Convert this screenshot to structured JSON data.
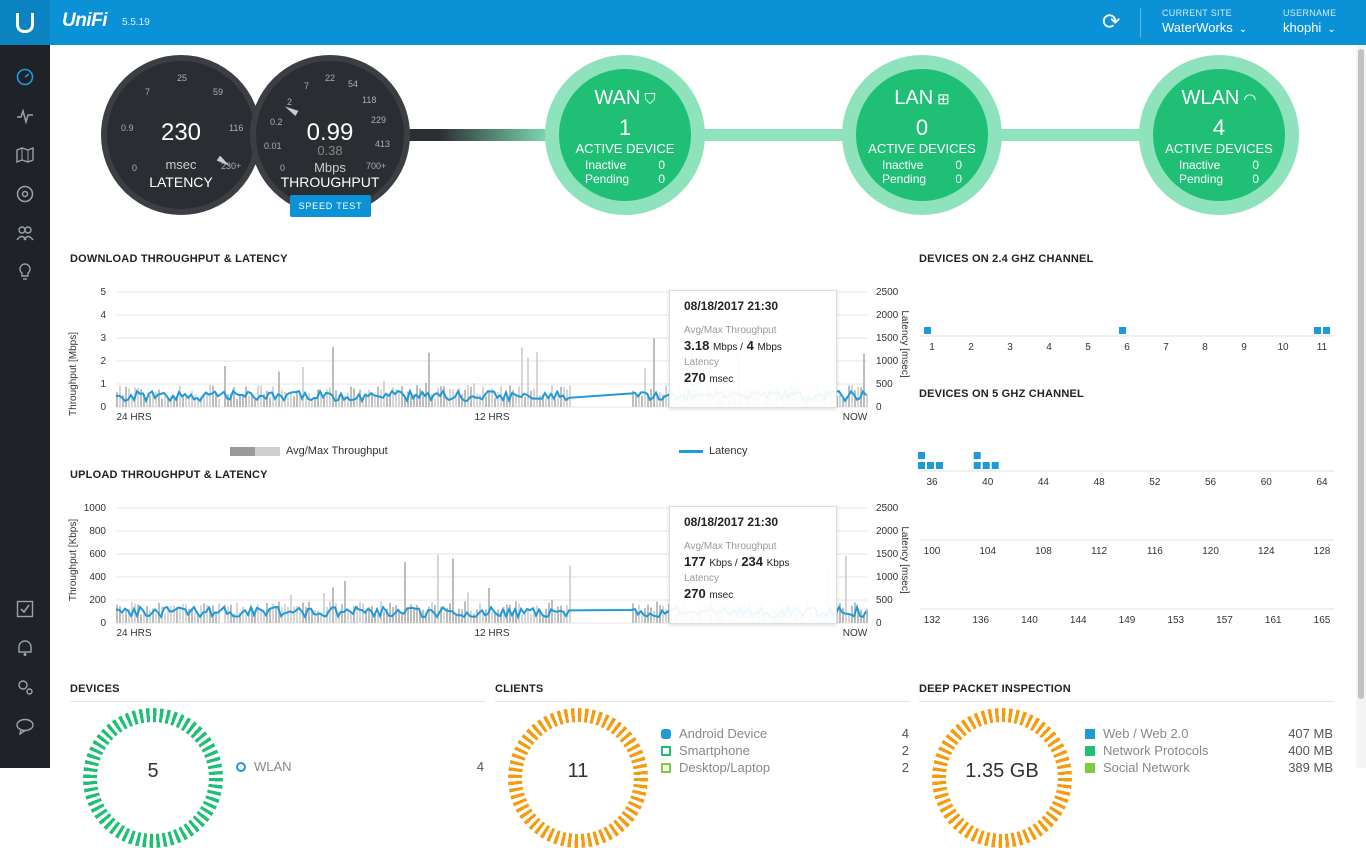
{
  "app": {
    "brand": "UniFi",
    "version": "5.5.19"
  },
  "header": {
    "site_label": "CURRENT SITE",
    "site_value": "WaterWorks",
    "user_label": "USERNAME",
    "user_value": "khophi"
  },
  "sidebar": {
    "top_items": [
      "dashboard-icon",
      "statistics-icon",
      "map-icon",
      "devices-icon",
      "clients-icon",
      "insights-icon"
    ],
    "bottom_items": [
      "tasks-icon",
      "alerts-icon",
      "settings-icon",
      "chat-icon"
    ]
  },
  "latency_gauge": {
    "value": "230",
    "unit": "msec",
    "title": "LATENCY",
    "ticks": [
      "0",
      "0.9",
      "7",
      "25",
      "59",
      "116",
      "230+"
    ]
  },
  "throughput_gauge": {
    "value": "0.99",
    "secondary": "0.38",
    "unit": "Mbps",
    "title": "THROUGHPUT",
    "ticks": [
      "0",
      "0.01",
      "0.2",
      "2",
      "7",
      "22",
      "54",
      "118",
      "229",
      "413",
      "700+"
    ],
    "button": "SPEED TEST"
  },
  "wan": {
    "title": "WAN",
    "count": "1",
    "active_label": "ACTIVE DEVICE",
    "inactive_label": "Inactive",
    "inactive": "0",
    "pending_label": "Pending",
    "pending": "0"
  },
  "lan": {
    "title": "LAN",
    "count": "0",
    "active_label": "ACTIVE DEVICES",
    "inactive_label": "Inactive",
    "inactive": "0",
    "pending_label": "Pending",
    "pending": "0"
  },
  "wlan": {
    "title": "WLAN",
    "count": "4",
    "active_label": "ACTIVE DEVICES",
    "inactive_label": "Inactive",
    "inactive": "0",
    "pending_label": "Pending",
    "pending": "0"
  },
  "download": {
    "title": "DOWNLOAD THROUGHPUT & LATENCY",
    "ylabel": "Throughput [Mbps]",
    "y2label": "Latency [msec]",
    "yticks": [
      "0",
      "1",
      "2",
      "3",
      "4",
      "5"
    ],
    "y2ticks": [
      "0",
      "500",
      "1000",
      "1500",
      "2000",
      "2500"
    ],
    "xticks": [
      "24 HRS",
      "12 HRS",
      "NOW"
    ],
    "tooltip": {
      "date": "08/18/2017 21:30",
      "tp_label": "Avg/Max Throughput",
      "tp_avg": "3.18",
      "tp_unit1": "Mbps /",
      "tp_max": "4",
      "tp_unit2": "Mbps",
      "lat_label": "Latency",
      "lat_value": "270",
      "lat_unit": "msec"
    }
  },
  "legend": {
    "throughput": "Avg/Max Throughput",
    "latency": "Latency"
  },
  "upload": {
    "title": "UPLOAD THROUGHPUT & LATENCY",
    "ylabel": "Throughput [Kbps]",
    "y2label": "Latency [msec]",
    "yticks": [
      "0",
      "200",
      "400",
      "600",
      "800",
      "1000"
    ],
    "y2ticks": [
      "0",
      "500",
      "1000",
      "1500",
      "2000",
      "2500"
    ],
    "xticks": [
      "24 HRS",
      "12 HRS",
      "NOW"
    ],
    "tooltip": {
      "date": "08/18/2017 21:30",
      "tp_label": "Avg/Max Throughput",
      "tp_avg": "177",
      "tp_unit1": "Kbps /",
      "tp_max": "234",
      "tp_unit2": "Kbps",
      "lat_label": "Latency",
      "lat_value": "270",
      "lat_unit": "msec"
    }
  },
  "ch24": {
    "title": "DEVICES ON 2.4 GHZ CHANNEL",
    "channels": [
      "1",
      "2",
      "3",
      "4",
      "5",
      "6",
      "7",
      "8",
      "9",
      "10",
      "11"
    ],
    "devices": {
      "1": 1,
      "6": 1,
      "11": 2
    }
  },
  "ch5": {
    "title": "DEVICES ON 5 GHZ CHANNEL",
    "rows": [
      [
        "36",
        "40",
        "44",
        "48",
        "52",
        "56",
        "60",
        "64"
      ],
      [
        "100",
        "104",
        "108",
        "112",
        "116",
        "120",
        "124",
        "128"
      ],
      [
        "132",
        "136",
        "140",
        "144",
        "149",
        "153",
        "157",
        "161",
        "165"
      ]
    ],
    "devices": {
      "36": 4,
      "40": 4
    }
  },
  "devices_panel": {
    "title": "DEVICES",
    "count": "5",
    "legend": [
      {
        "name": "WLAN",
        "value": "4"
      }
    ]
  },
  "clients_panel": {
    "title": "CLIENTS",
    "count": "11",
    "legend": [
      {
        "name": "Android Device",
        "value": "4",
        "color": "#1e9ad8",
        "icon": "android-icon"
      },
      {
        "name": "Smartphone",
        "value": "2",
        "color": "#1fbf76",
        "icon": "smartphone-icon"
      },
      {
        "name": "Desktop/Laptop",
        "value": "2",
        "color": "#7ccd3a",
        "icon": "laptop-icon"
      }
    ]
  },
  "dpi_panel": {
    "title": "DEEP PACKET INSPECTION",
    "total": "1.35 GB",
    "legend": [
      {
        "name": "Web / Web 2.0",
        "value": "407 MB",
        "color": "#1e9ad8"
      },
      {
        "name": "Network Protocols",
        "value": "400 MB",
        "color": "#1fbf76"
      },
      {
        "name": "Social Network",
        "value": "389 MB",
        "color": "#7ccd3a"
      }
    ]
  }
}
